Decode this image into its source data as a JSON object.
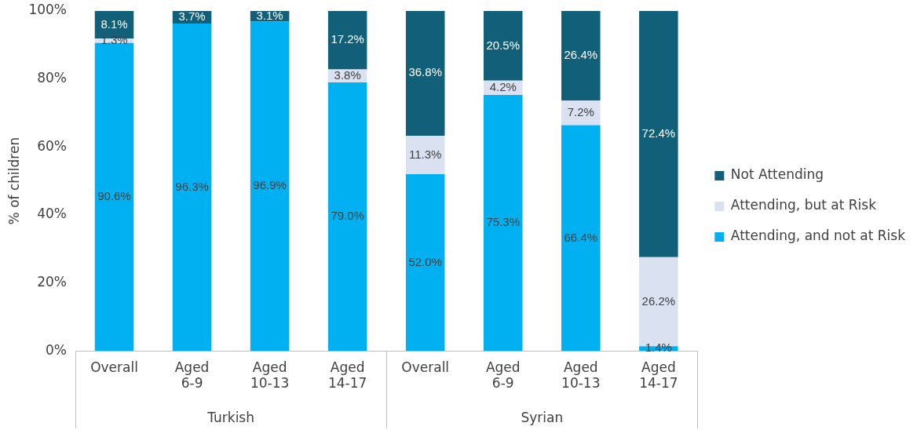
{
  "chart_data": {
    "type": "bar",
    "stacked": true,
    "ylabel": "% of children",
    "categories": [
      "Overall",
      "Aged 6-9",
      "Aged 10-13",
      "Aged 14-17",
      "Overall",
      "Aged 6-9",
      "Aged 10-13",
      "Aged 14-17"
    ],
    "annotations": [
      "Turkish",
      "Syrian"
    ],
    "ylim": [
      0,
      100
    ],
    "yticks": [
      {
        "value": 0,
        "label": "0%"
      },
      {
        "value": 20,
        "label": "20%"
      },
      {
        "value": 40,
        "label": "40%"
      },
      {
        "value": 60,
        "label": "60%"
      },
      {
        "value": 80,
        "label": "80%"
      },
      {
        "value": 100,
        "label": "100%"
      }
    ],
    "grid": false,
    "legend": "right",
    "series": [
      {
        "name": "Attending, and not at Risk",
        "color": "#00b0f0",
        "values": [
          90.6,
          96.3,
          96.9,
          79.0,
          52.0,
          75.3,
          66.4,
          1.4
        ],
        "value_labels": [
          "90.6%",
          "96.3%",
          "96.9%",
          "79.0%",
          "52.0%",
          "75.3%",
          "66.4%",
          "1.4%"
        ]
      },
      {
        "name": "Attending, but at Risk",
        "color": "#dae1f0",
        "values": [
          1.3,
          0,
          0,
          3.8,
          11.3,
          4.2,
          7.2,
          26.2
        ],
        "value_labels": [
          "1.3%",
          null,
          null,
          "3.8%",
          "11.3%",
          "4.2%",
          "7.2%",
          "26.2%"
        ]
      },
      {
        "name": "Not Attending",
        "color": "#115f78",
        "values": [
          8.1,
          3.7,
          3.1,
          17.2,
          36.8,
          20.5,
          26.4,
          72.4
        ],
        "value_labels": [
          "8.1%",
          "3.7%",
          "3.1%",
          "17.2%",
          "36.8%",
          "20.5%",
          "26.4%",
          "72.4%"
        ]
      }
    ]
  }
}
